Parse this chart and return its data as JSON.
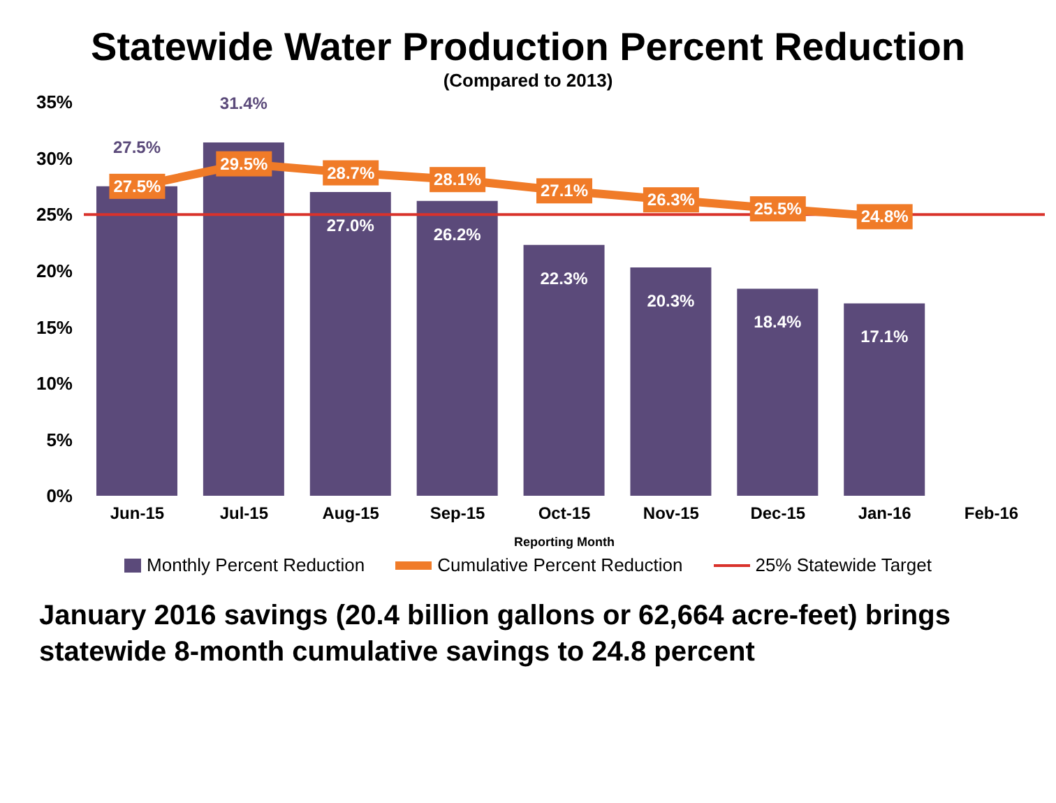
{
  "chart_data": {
    "type": "bar",
    "title": "Statewide Water Production Percent Reduction",
    "subtitle": "(Compared to 2013)",
    "xlabel": "Reporting Month",
    "categories": [
      "Jun-15",
      "Jul-15",
      "Aug-15",
      "Sep-15",
      "Oct-15",
      "Nov-15",
      "Dec-15",
      "Jan-16",
      "Feb-16"
    ],
    "series": [
      {
        "name": "Monthly Percent Reduction",
        "color": "#5b4a7a",
        "values": [
          27.5,
          31.4,
          27.0,
          26.2,
          22.3,
          20.3,
          18.4,
          17.1,
          null
        ],
        "value_labels": [
          "27.5%",
          "31.4%",
          "27.0%",
          "26.2%",
          "22.3%",
          "20.3%",
          "18.4%",
          "17.1%",
          null
        ]
      },
      {
        "name": "Cumulative Percent Reduction",
        "type": "line",
        "marker": "square",
        "color": "#f07b28",
        "values": [
          27.5,
          29.5,
          28.7,
          28.1,
          27.1,
          26.3,
          25.5,
          24.8,
          null
        ],
        "value_labels": [
          "27.5%",
          "29.5%",
          "28.7%",
          "28.1%",
          "27.1%",
          "26.3%",
          "25.5%",
          "24.8%",
          null
        ]
      }
    ],
    "ref_lines": [
      {
        "axis": "y",
        "value": 25,
        "label": "25% Statewide Target",
        "color": "#d9322b"
      }
    ],
    "ylim": [
      0,
      35
    ],
    "yticks": [
      {
        "value": 0,
        "label": "0%"
      },
      {
        "value": 5,
        "label": "5%"
      },
      {
        "value": 10,
        "label": "10%"
      },
      {
        "value": 15,
        "label": "15%"
      },
      {
        "value": 20,
        "label": "20%"
      },
      {
        "value": 25,
        "label": "25%"
      },
      {
        "value": 30,
        "label": "30%"
      },
      {
        "value": 35,
        "label": "35%"
      }
    ],
    "grid": false,
    "legend": "bottom",
    "line_style": "solid",
    "annotations": [
      "January 2016 savings (20.4 billion gallons or 62,664 acre-feet) brings statewide 8-month cumulative savings to 24.8 percent"
    ]
  }
}
